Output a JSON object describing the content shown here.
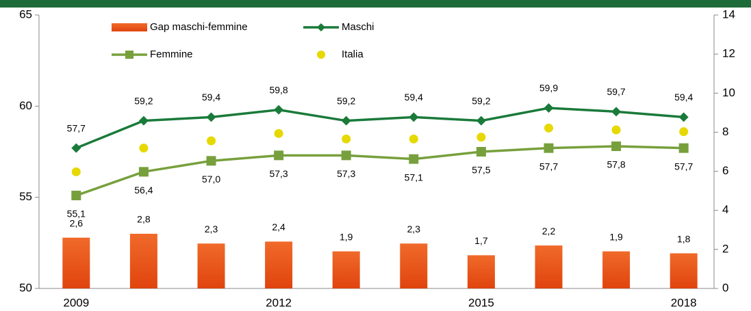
{
  "chart_data": {
    "type": "bar-line",
    "categories": [
      "2009",
      null,
      null,
      "2012",
      null,
      null,
      "2015",
      null,
      null,
      "2018"
    ],
    "series": [
      {
        "name": "Gap maschi-femmine",
        "type": "bar",
        "axis": "y2",
        "color": "#e0440e",
        "values": [
          2.6,
          2.8,
          2.3,
          2.4,
          1.9,
          2.3,
          1.7,
          2.2,
          1.9,
          1.8
        ],
        "value_labels": [
          "2,6",
          "2,8",
          "2,3",
          "2,4",
          "1,9",
          "2,3",
          "1,7",
          "2,2",
          "1,9",
          "1,8"
        ]
      },
      {
        "name": "Maschi",
        "type": "line",
        "marker": "diamond",
        "color": "#1a7a3a",
        "values": [
          57.7,
          59.2,
          59.4,
          59.8,
          59.2,
          59.4,
          59.2,
          59.9,
          59.7,
          59.4
        ],
        "value_labels": [
          "57,7",
          "59,2",
          "59,4",
          "59,8",
          "59,2",
          "59,4",
          "59,2",
          "59,9",
          "59,7",
          "59,4"
        ]
      },
      {
        "name": "Femmine",
        "type": "line",
        "marker": "square",
        "color": "#77a03c",
        "values": [
          55.1,
          56.4,
          57.0,
          57.3,
          57.3,
          57.1,
          57.5,
          57.7,
          57.8,
          57.7
        ],
        "value_labels": [
          "55,1",
          "56,4",
          "57,0",
          "57,3",
          "57,3",
          "57,1",
          "57,5",
          "57,7",
          "57,8",
          "57,7"
        ]
      },
      {
        "name": "Italia",
        "type": "dot",
        "color": "#e6d800",
        "values": [
          56.4,
          57.7,
          58.1,
          58.5,
          58.2,
          58.2,
          58.3,
          58.8,
          58.7,
          58.6
        ]
      }
    ],
    "ylim": [
      50,
      65
    ],
    "yticks": [
      50,
      55,
      60,
      65
    ],
    "y2lim": [
      0,
      14
    ],
    "y2ticks": [
      0,
      2,
      4,
      6,
      8,
      10,
      12,
      14
    ],
    "legend": "top-left"
  }
}
